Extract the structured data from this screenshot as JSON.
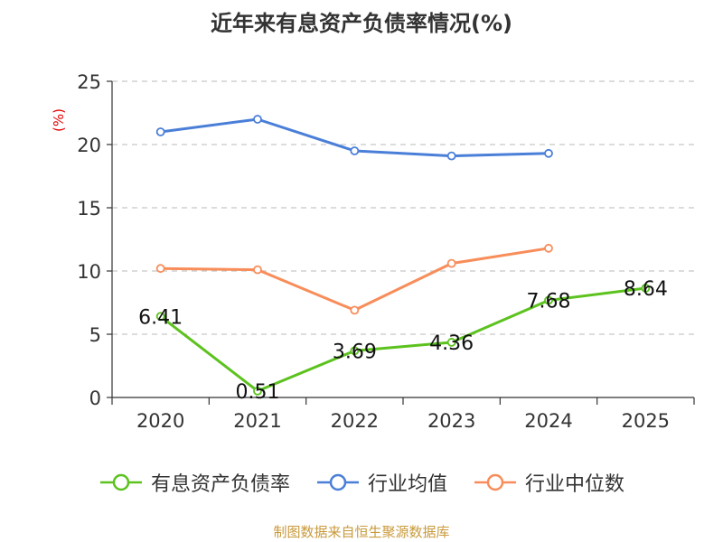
{
  "chart_data": {
    "type": "line",
    "title": "近年来有息资产负债率情况(%)",
    "ylabel": "(%)",
    "ylim": [
      0,
      25
    ],
    "yticks": [
      0,
      5,
      10,
      15,
      20,
      25
    ],
    "categories": [
      "2020",
      "2021",
      "2022",
      "2023",
      "2024",
      "2025"
    ],
    "grid": true,
    "legend_position": "bottom",
    "series": [
      {
        "name": "有息资产负债率",
        "color": "#5cc21e",
        "values": [
          6.41,
          0.51,
          3.69,
          4.36,
          7.68,
          8.64
        ],
        "labels": [
          "6.41",
          "0.51",
          "3.69",
          "4.36",
          "7.68",
          "8.64"
        ]
      },
      {
        "name": "行业均值",
        "color": "#4a7fd8",
        "values": [
          21.0,
          22.0,
          19.5,
          19.1,
          19.3,
          null
        ]
      },
      {
        "name": "行业中位数",
        "color": "#f88d5a",
        "values": [
          10.2,
          10.1,
          6.9,
          10.6,
          11.8,
          null
        ]
      }
    ]
  },
  "source": "制图数据来自恒生聚源数据库"
}
